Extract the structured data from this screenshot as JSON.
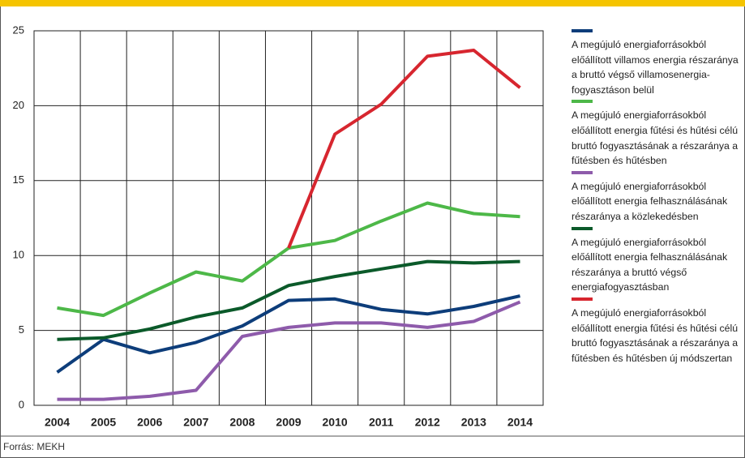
{
  "chart_data": {
    "type": "line",
    "source": "Forrás: MEKH",
    "categories": [
      "2004",
      "2005",
      "2006",
      "2007",
      "2008",
      "2009",
      "2010",
      "2011",
      "2012",
      "2013",
      "2014"
    ],
    "series": [
      {
        "name": "A megújuló energiaforrásokból előállított villamos energia részaránya a bruttó végső villamosenergia-fogyasztáson belül",
        "color": "#0d3d7a",
        "values": [
          2.2,
          4.4,
          3.5,
          4.2,
          5.3,
          7.0,
          7.1,
          6.4,
          6.1,
          6.6,
          7.3
        ]
      },
      {
        "name": "A megújuló energiaforrásokból előállított energia fűtési és hűtési célú bruttó fogyasztásának a részaránya a fűtésben és hűtésben",
        "color": "#4db848",
        "values": [
          6.5,
          6.0,
          7.5,
          8.9,
          8.3,
          10.5,
          11.0,
          12.3,
          13.5,
          12.8,
          12.6
        ]
      },
      {
        "name": "A megújuló energiaforrásokból előállított energia felhasználásának részaránya a közlekedésben",
        "color": "#8e5bab",
        "values": [
          0.4,
          0.4,
          0.6,
          1.0,
          4.6,
          5.2,
          5.5,
          5.5,
          5.2,
          5.6,
          6.9
        ]
      },
      {
        "name": "A megújuló energiaforrásokból előállított energia felhasználásának részaránya a bruttó végső energiafogyasztásban",
        "color": "#0b5a2a",
        "values": [
          4.4,
          4.5,
          5.1,
          5.9,
          6.5,
          8.0,
          8.6,
          9.1,
          9.6,
          9.5,
          9.6
        ]
      },
      {
        "name": "A megújuló energiaforrásokból előállított energia fűtési és hűtési célú bruttó fogyasztásának a részaránya a fűtésben és hűtésben új módszertan",
        "color": "#d7262f",
        "values": [
          null,
          null,
          null,
          null,
          null,
          10.5,
          18.1,
          20.1,
          23.3,
          23.7,
          21.2
        ]
      }
    ],
    "ylim": [
      0,
      25
    ],
    "yticks": [
      0,
      5,
      10,
      15,
      20,
      25
    ],
    "grid": true,
    "legend": "right"
  }
}
